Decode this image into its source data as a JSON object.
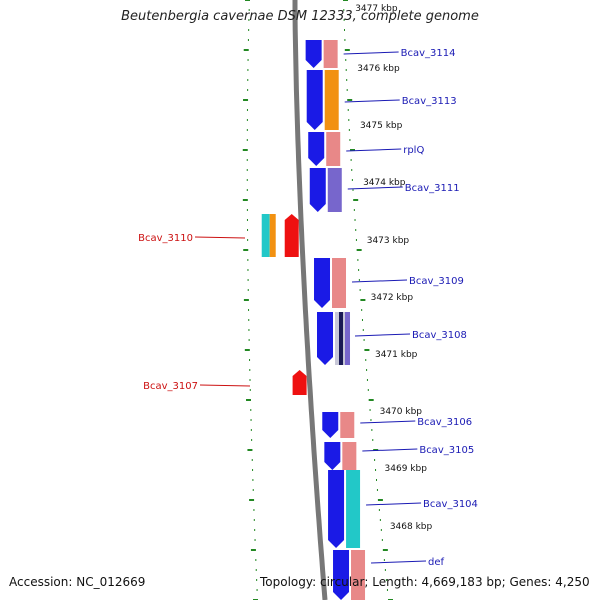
{
  "title": "Beutenbergia cavernae DSM 12333, complete genome",
  "accession": "Accession: NC_012669",
  "topology": "Topology: circular; Length: 4,669,183 bp; Genes: 4,250",
  "colors": {
    "backbone": "#777777",
    "tick": "#228822",
    "cds_forward": "#1a1ae6",
    "forward_label": "#1a1ab4",
    "reverse_label": "#cc1111",
    "reverse_gene": "#ee1111",
    "pink": "#e88888",
    "orange": "#f29111",
    "purple": "#7766cc",
    "cyan": "#22c8c8",
    "navy": "#1a1a55",
    "lightgray": "#c8c8d8"
  },
  "kbp_markers": [
    "3477 kbp",
    "3476 kbp",
    "3475 kbp",
    "3474 kbp",
    "3473 kbp",
    "3472 kbp",
    "3471 kbp",
    "3470 kbp",
    "3469 kbp",
    "3468 kbp"
  ],
  "forward_genes": [
    "Bcav_3114",
    "Bcav_3113",
    "rplQ",
    "Bcav_3111",
    "Bcav_3109",
    "Bcav_3108",
    "Bcav_3106",
    "Bcav_3105",
    "Bcav_3104",
    "def"
  ],
  "reverse_genes": [
    "Bcav_3110",
    "Bcav_3107"
  ]
}
